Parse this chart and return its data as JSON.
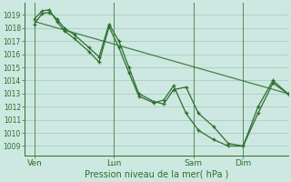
{
  "bg_color": "#cce8e0",
  "grid_color": "#aaccc4",
  "line_color": "#2d6e2d",
  "xlabel": "Pression niveau de la mer( hPa )",
  "yticks": [
    1009,
    1010,
    1011,
    1012,
    1013,
    1014,
    1015,
    1016,
    1017,
    1018,
    1019
  ],
  "ylim": [
    1008.3,
    1019.9
  ],
  "xtick_labels": [
    "Ven",
    "Lun",
    "Sam",
    "Dim"
  ],
  "xtick_positions": [
    4,
    36,
    68,
    88
  ],
  "xlim": [
    0,
    106
  ],
  "vline_positions": [
    4,
    36,
    68,
    88
  ],
  "series1_x": [
    4,
    7,
    10,
    13,
    16,
    20,
    26,
    30,
    34,
    38,
    42,
    46,
    52,
    56,
    60,
    65,
    70,
    76,
    82,
    88,
    94,
    100,
    106
  ],
  "series1_y": [
    1018.3,
    1019.1,
    1019.2,
    1018.7,
    1018.0,
    1017.5,
    1016.5,
    1015.8,
    1018.3,
    1017.0,
    1015.0,
    1013.0,
    1012.4,
    1012.2,
    1013.3,
    1013.5,
    1011.5,
    1010.5,
    1009.2,
    1009.0,
    1011.5,
    1013.8,
    1013.0
  ],
  "series2_x": [
    4,
    7,
    10,
    13,
    16,
    20,
    26,
    30,
    34,
    38,
    42,
    46,
    52,
    56,
    60,
    65,
    70,
    76,
    82,
    88,
    94,
    100,
    106
  ],
  "series2_y": [
    1018.7,
    1019.3,
    1019.4,
    1018.5,
    1017.8,
    1017.2,
    1016.2,
    1015.4,
    1018.1,
    1016.5,
    1014.6,
    1012.8,
    1012.3,
    1012.5,
    1013.6,
    1011.5,
    1010.2,
    1009.5,
    1009.0,
    1009.0,
    1012.0,
    1014.0,
    1013.0
  ],
  "series3_x": [
    4,
    106
  ],
  "series3_y": [
    1018.5,
    1013.0
  ]
}
